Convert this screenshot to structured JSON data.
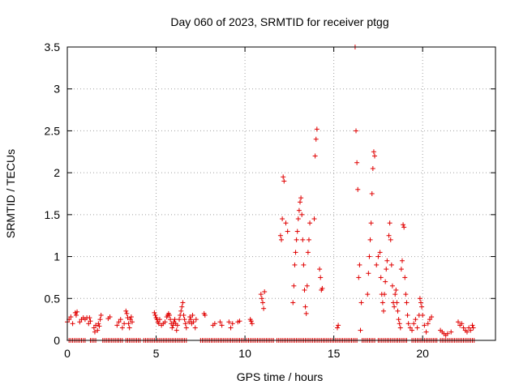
{
  "chart_data": {
    "type": "scatter",
    "title": "Day 060 of 2023, SRMTID for receiver ptgg",
    "xlabel": "GPS time / hours",
    "ylabel": "SRMTID / TECUs",
    "xlim": [
      0,
      24.1
    ],
    "ylim": [
      0,
      3.5
    ],
    "xticks": [
      0,
      5,
      10,
      15,
      20
    ],
    "xtick_labels": [
      "0",
      "5",
      "10",
      "15",
      "20"
    ],
    "yticks": [
      0,
      0.5,
      1,
      1.5,
      2,
      2.5,
      3,
      3.5
    ],
    "ytick_labels": [
      "0",
      "0.5",
      "1",
      "1.5",
      "2",
      "2.5",
      "3",
      "3.5"
    ],
    "grid": true,
    "marker": "plus",
    "series": [
      {
        "name": "SRMTID",
        "color": "#e00000",
        "points": [
          [
            0.0,
            0.22
          ],
          [
            0.1,
            0.25
          ],
          [
            0.2,
            0.28
          ],
          [
            0.3,
            0.2
          ],
          [
            0.45,
            0.33
          ],
          [
            0.5,
            0.3
          ],
          [
            0.55,
            0.34
          ],
          [
            0.7,
            0.22
          ],
          [
            0.8,
            0.25
          ],
          [
            0.9,
            0.27
          ],
          [
            1.0,
            0.25
          ],
          [
            1.1,
            0.27
          ],
          [
            1.2,
            0.2
          ],
          [
            1.25,
            0.27
          ],
          [
            1.3,
            0.23
          ],
          [
            1.5,
            0.15
          ],
          [
            1.55,
            0.1
          ],
          [
            1.6,
            0.18
          ],
          [
            1.7,
            0.12
          ],
          [
            1.75,
            0.2
          ],
          [
            1.8,
            0.17
          ],
          [
            1.85,
            0.25
          ],
          [
            1.9,
            0.3
          ],
          [
            2.3,
            0.26
          ],
          [
            2.4,
            0.28
          ],
          [
            2.8,
            0.18
          ],
          [
            2.9,
            0.22
          ],
          [
            3.0,
            0.25
          ],
          [
            3.1,
            0.15
          ],
          [
            3.2,
            0.2
          ],
          [
            3.3,
            0.35
          ],
          [
            3.35,
            0.32
          ],
          [
            3.4,
            0.27
          ],
          [
            3.45,
            0.2
          ],
          [
            3.5,
            0.15
          ],
          [
            3.55,
            0.25
          ],
          [
            3.6,
            0.28
          ],
          [
            3.65,
            0.22
          ],
          [
            4.9,
            0.33
          ],
          [
            4.95,
            0.3
          ],
          [
            5.0,
            0.27
          ],
          [
            5.05,
            0.25
          ],
          [
            5.1,
            0.22
          ],
          [
            5.15,
            0.2
          ],
          [
            5.2,
            0.25
          ],
          [
            5.3,
            0.18
          ],
          [
            5.4,
            0.2
          ],
          [
            5.5,
            0.22
          ],
          [
            5.6,
            0.28
          ],
          [
            5.65,
            0.3
          ],
          [
            5.7,
            0.32
          ],
          [
            5.75,
            0.3
          ],
          [
            5.8,
            0.25
          ],
          [
            5.85,
            0.2
          ],
          [
            5.9,
            0.15
          ],
          [
            5.95,
            0.18
          ],
          [
            6.0,
            0.22
          ],
          [
            6.05,
            0.25
          ],
          [
            6.1,
            0.2
          ],
          [
            6.15,
            0.12
          ],
          [
            6.2,
            0.18
          ],
          [
            6.3,
            0.25
          ],
          [
            6.35,
            0.3
          ],
          [
            6.4,
            0.35
          ],
          [
            6.45,
            0.4
          ],
          [
            6.5,
            0.45
          ],
          [
            6.55,
            0.3
          ],
          [
            6.6,
            0.25
          ],
          [
            6.65,
            0.2
          ],
          [
            6.7,
            0.15
          ],
          [
            6.85,
            0.22
          ],
          [
            6.9,
            0.28
          ],
          [
            6.95,
            0.25
          ],
          [
            7.0,
            0.2
          ],
          [
            7.05,
            0.3
          ],
          [
            7.1,
            0.22
          ],
          [
            7.2,
            0.15
          ],
          [
            7.25,
            0.25
          ],
          [
            7.7,
            0.32
          ],
          [
            7.75,
            0.3
          ],
          [
            8.2,
            0.18
          ],
          [
            8.3,
            0.2
          ],
          [
            8.6,
            0.22
          ],
          [
            8.7,
            0.18
          ],
          [
            9.1,
            0.22
          ],
          [
            9.2,
            0.15
          ],
          [
            9.3,
            0.2
          ],
          [
            9.6,
            0.22
          ],
          [
            9.7,
            0.23
          ],
          [
            10.3,
            0.25
          ],
          [
            10.35,
            0.23
          ],
          [
            10.4,
            0.2
          ],
          [
            10.9,
            0.55
          ],
          [
            10.95,
            0.5
          ],
          [
            11.0,
            0.45
          ],
          [
            11.05,
            0.38
          ],
          [
            11.1,
            0.58
          ],
          [
            12.0,
            1.25
          ],
          [
            12.05,
            1.2
          ],
          [
            12.1,
            1.45
          ],
          [
            12.15,
            1.95
          ],
          [
            12.2,
            1.9
          ],
          [
            12.3,
            1.4
          ],
          [
            12.4,
            1.3
          ],
          [
            12.7,
            0.45
          ],
          [
            12.75,
            0.65
          ],
          [
            12.8,
            0.9
          ],
          [
            12.85,
            1.05
          ],
          [
            12.9,
            1.2
          ],
          [
            12.95,
            1.3
          ],
          [
            13.0,
            1.45
          ],
          [
            13.05,
            1.55
          ],
          [
            13.1,
            1.65
          ],
          [
            13.15,
            1.7
          ],
          [
            13.2,
            1.5
          ],
          [
            13.25,
            1.2
          ],
          [
            13.3,
            0.9
          ],
          [
            13.35,
            0.6
          ],
          [
            13.4,
            0.4
          ],
          [
            13.45,
            0.32
          ],
          [
            13.5,
            0.65
          ],
          [
            13.55,
            1.05
          ],
          [
            13.6,
            1.2
          ],
          [
            13.65,
            1.4
          ],
          [
            13.9,
            1.45
          ],
          [
            13.95,
            2.2
          ],
          [
            14.0,
            2.4
          ],
          [
            14.05,
            2.52
          ],
          [
            14.2,
            0.85
          ],
          [
            14.25,
            0.75
          ],
          [
            14.3,
            0.6
          ],
          [
            14.35,
            0.62
          ],
          [
            15.2,
            0.15
          ],
          [
            15.25,
            0.18
          ],
          [
            16.2,
            3.5
          ],
          [
            16.25,
            2.5
          ],
          [
            16.3,
            2.12
          ],
          [
            16.35,
            1.8
          ],
          [
            16.4,
            0.75
          ],
          [
            16.45,
            0.9
          ],
          [
            16.5,
            0.12
          ],
          [
            16.55,
            0.45
          ],
          [
            16.9,
            0.55
          ],
          [
            16.95,
            0.8
          ],
          [
            17.0,
            1.0
          ],
          [
            17.05,
            1.2
          ],
          [
            17.1,
            1.4
          ],
          [
            17.15,
            1.75
          ],
          [
            17.2,
            2.05
          ],
          [
            17.25,
            2.25
          ],
          [
            17.3,
            2.2
          ],
          [
            17.4,
            0.9
          ],
          [
            17.5,
            1.0
          ],
          [
            17.6,
            1.05
          ],
          [
            17.65,
            0.75
          ],
          [
            17.7,
            0.55
          ],
          [
            17.75,
            0.45
          ],
          [
            17.8,
            0.35
          ],
          [
            17.85,
            0.55
          ],
          [
            17.9,
            0.7
          ],
          [
            17.95,
            0.85
          ],
          [
            18.0,
            0.95
          ],
          [
            18.1,
            1.25
          ],
          [
            18.15,
            1.4
          ],
          [
            18.2,
            1.2
          ],
          [
            18.25,
            0.9
          ],
          [
            18.3,
            0.65
          ],
          [
            18.35,
            0.45
          ],
          [
            18.4,
            0.4
          ],
          [
            18.45,
            0.55
          ],
          [
            18.5,
            0.6
          ],
          [
            18.55,
            0.45
          ],
          [
            18.6,
            0.35
          ],
          [
            18.65,
            0.25
          ],
          [
            18.7,
            0.2
          ],
          [
            18.75,
            0.15
          ],
          [
            18.8,
            0.85
          ],
          [
            18.85,
            0.95
          ],
          [
            18.9,
            1.38
          ],
          [
            18.95,
            1.35
          ],
          [
            19.0,
            0.75
          ],
          [
            19.05,
            0.55
          ],
          [
            19.1,
            0.45
          ],
          [
            19.15,
            0.3
          ],
          [
            19.2,
            0.2
          ],
          [
            19.3,
            0.15
          ],
          [
            19.4,
            0.12
          ],
          [
            19.5,
            0.2
          ],
          [
            19.6,
            0.25
          ],
          [
            19.7,
            0.15
          ],
          [
            19.8,
            0.3
          ],
          [
            19.85,
            0.5
          ],
          [
            19.9,
            0.45
          ],
          [
            19.95,
            0.4
          ],
          [
            20.0,
            0.3
          ],
          [
            20.1,
            0.18
          ],
          [
            20.2,
            0.1
          ],
          [
            20.3,
            0.2
          ],
          [
            20.4,
            0.25
          ],
          [
            20.5,
            0.28
          ],
          [
            21.0,
            0.12
          ],
          [
            21.1,
            0.1
          ],
          [
            21.2,
            0.08
          ],
          [
            21.3,
            0.06
          ],
          [
            21.4,
            0.08
          ],
          [
            21.6,
            0.1
          ],
          [
            22.0,
            0.22
          ],
          [
            22.1,
            0.18
          ],
          [
            22.2,
            0.2
          ],
          [
            22.3,
            0.15
          ],
          [
            22.4,
            0.12
          ],
          [
            22.5,
            0.1
          ],
          [
            22.6,
            0.15
          ],
          [
            22.7,
            0.12
          ],
          [
            22.8,
            0.18
          ],
          [
            22.85,
            0.15
          ]
        ]
      }
    ],
    "zero_band": [
      [
        0.1,
        1.0
      ],
      [
        1.3,
        1.6
      ],
      [
        2.0,
        3.1
      ],
      [
        3.3,
        4.1
      ],
      [
        4.3,
        6.7
      ],
      [
        7.5,
        11.6
      ],
      [
        11.8,
        16.3
      ],
      [
        16.6,
        17.3
      ],
      [
        17.5,
        19.1
      ],
      [
        19.4,
        20.8
      ],
      [
        21.0,
        22.9
      ]
    ]
  }
}
